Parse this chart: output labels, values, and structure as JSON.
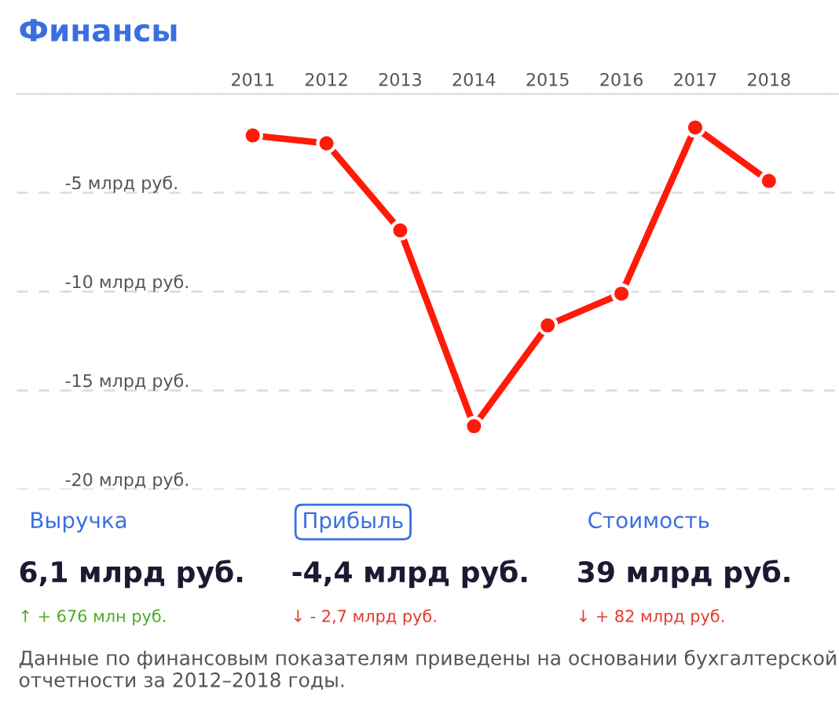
{
  "chart_data": {
    "type": "line",
    "title": "Финансы",
    "categories": [
      "2011",
      "2012",
      "2013",
      "2014",
      "2015",
      "2016",
      "2017",
      "2018"
    ],
    "series": [
      {
        "color": "#ff1a0a",
        "values": [
          -2.1,
          -2.5,
          -6.9,
          -16.8,
          -11.7,
          -10.1,
          -1.7,
          -4.4
        ]
      }
    ],
    "ylim": [
      -20,
      0
    ],
    "yticks": [
      {
        "value": -20,
        "label": "-20 млрд руб."
      },
      {
        "value": -15,
        "label": "-15 млрд руб."
      },
      {
        "value": -10,
        "label": "-10 млрд руб."
      },
      {
        "value": -5,
        "label": "-5 млрд руб."
      },
      {
        "value": 0,
        "label": null
      }
    ],
    "grid": "y",
    "marker": "circle",
    "line_style": "solid",
    "legend": false,
    "annotations": [
      "Выручка",
      "Прибыль",
      "Стоимость",
      "6,1 млрд руб.",
      "-4,4 млрд руб.",
      "39 млрд руб.",
      "↑ + 676 млн руб.",
      "↓ - 2,7 млрд руб.",
      "↓ + 82 млрд руб.",
      "Данные по финансовым показателям приведены на основании бухгалтерской отчетности за 2012–2018 годы."
    ]
  }
}
